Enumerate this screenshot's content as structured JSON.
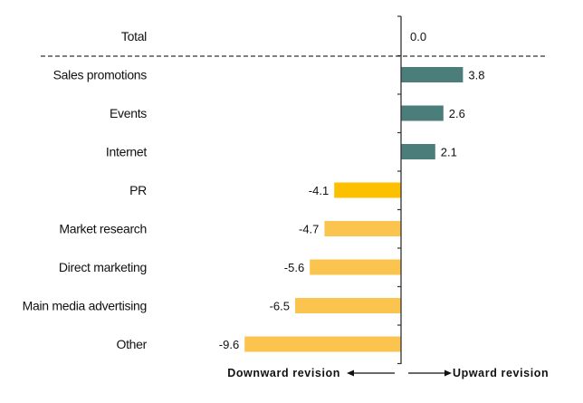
{
  "chart_data": {
    "type": "bar",
    "orientation": "horizontal",
    "categories": [
      "Total",
      "Sales promotions",
      "Events",
      "Internet",
      "PR",
      "Market research",
      "Direct marketing",
      "Main media advertising",
      "Other"
    ],
    "values": [
      0.0,
      3.8,
      2.6,
      2.1,
      -4.1,
      -4.7,
      -5.6,
      -6.5,
      -9.6
    ],
    "value_labels": [
      "0.0",
      "3.8",
      "2.6",
      "2.1",
      "-4.1",
      "-4.7",
      "-5.6",
      "-6.5",
      "-9.6"
    ],
    "xlim": [
      -9.6,
      8
    ],
    "grid": false,
    "annotations": {
      "downward": "Downward revision",
      "upward": "Upward revision"
    },
    "colors": {
      "positive": "#4b7d7b",
      "highlight": "#fdc000",
      "negative": "#fbc44f",
      "axis": "#333333"
    },
    "highlight_category": "PR"
  }
}
